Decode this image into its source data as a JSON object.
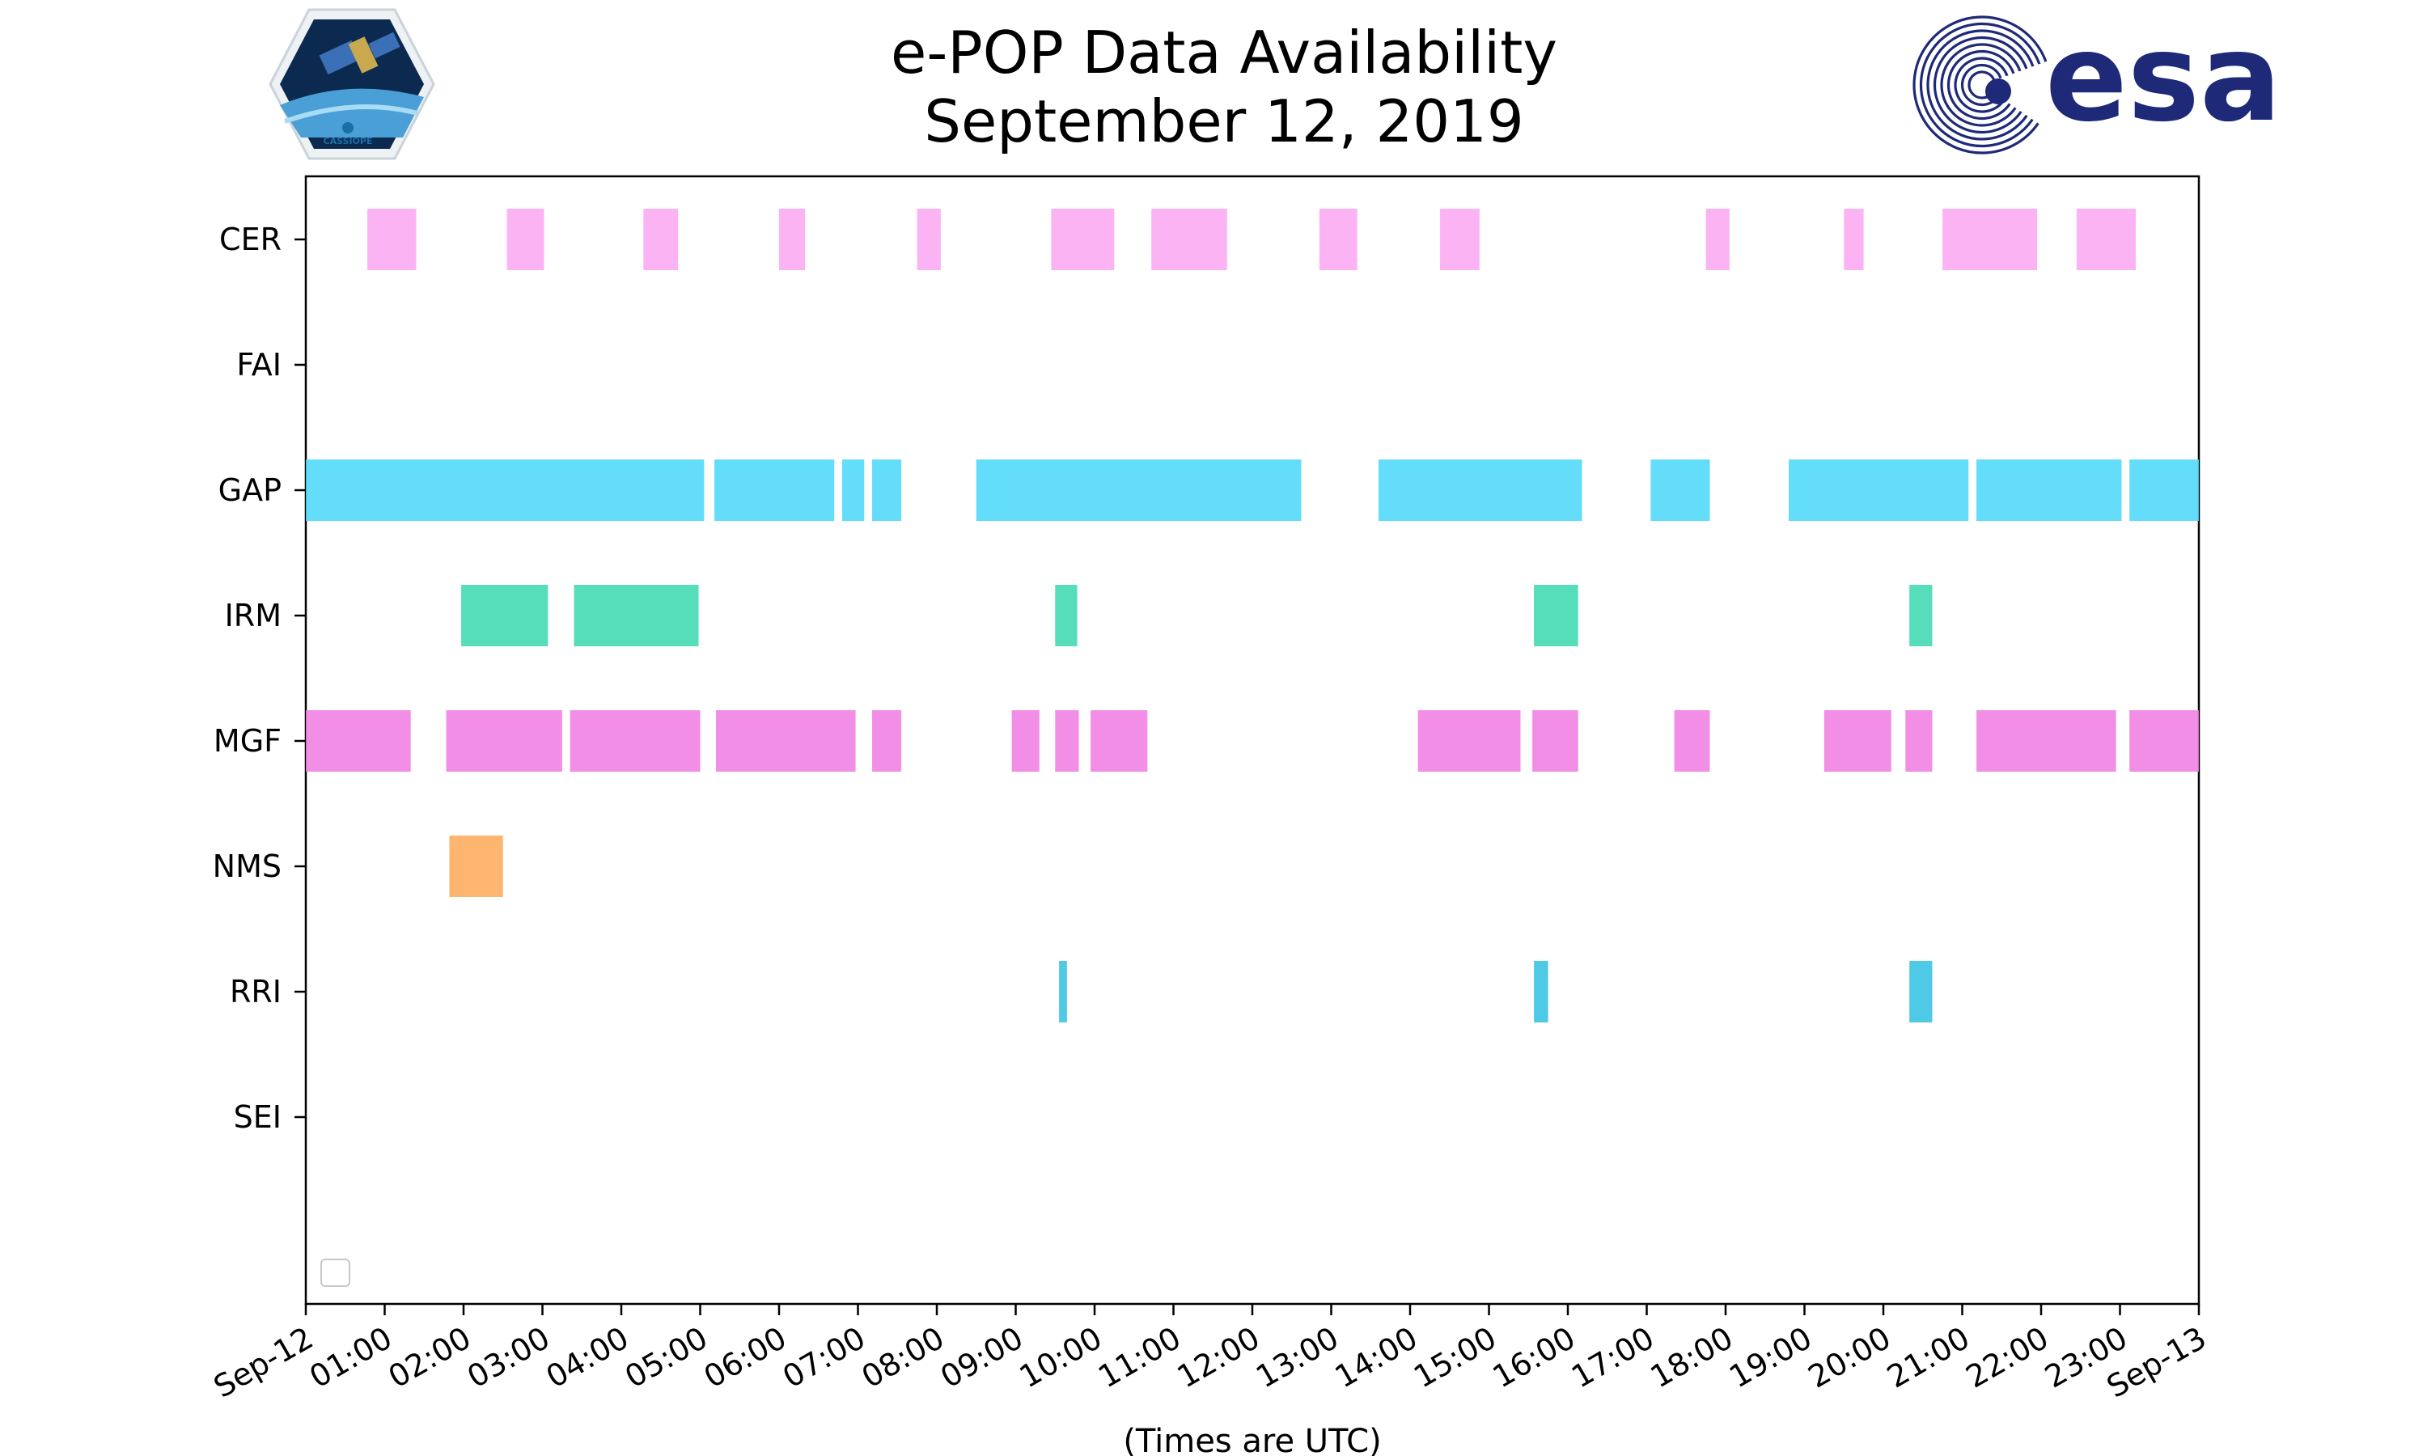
{
  "chart_data": {
    "type": "timeline",
    "title": "e-POP Data Availability",
    "subtitle": "September 12, 2019",
    "xlabel": "(Times are UTC)",
    "x_unit": "hours since Sep-12 00:00",
    "xlim": [
      0,
      24
    ],
    "x_ticks": [
      "Sep-12",
      "01:00",
      "02:00",
      "03:00",
      "04:00",
      "05:00",
      "06:00",
      "07:00",
      "08:00",
      "09:00",
      "10:00",
      "11:00",
      "12:00",
      "13:00",
      "14:00",
      "15:00",
      "16:00",
      "17:00",
      "18:00",
      "19:00",
      "20:00",
      "21:00",
      "22:00",
      "23:00",
      "Sep-13"
    ],
    "instruments": [
      {
        "name": "CER",
        "color": "#fca8f3",
        "segments": [
          [
            0.78,
            1.4
          ],
          [
            2.55,
            3.02
          ],
          [
            4.28,
            4.72
          ],
          [
            6.0,
            6.33
          ],
          [
            7.75,
            8.05
          ],
          [
            9.45,
            10.25
          ],
          [
            10.72,
            11.68
          ],
          [
            12.85,
            13.33
          ],
          [
            14.38,
            14.88
          ],
          [
            17.75,
            18.05
          ],
          [
            19.5,
            19.75
          ],
          [
            20.75,
            21.95
          ],
          [
            22.45,
            23.2
          ]
        ]
      },
      {
        "name": "FAI",
        "color": "#fca8f3",
        "segments": []
      },
      {
        "name": "GAP",
        "color": "#4dd8f8",
        "segments": [
          [
            0.0,
            5.05
          ],
          [
            5.18,
            6.7
          ],
          [
            6.8,
            7.08
          ],
          [
            7.18,
            7.55
          ],
          [
            8.5,
            12.62
          ],
          [
            13.6,
            16.18
          ],
          [
            17.05,
            17.8
          ],
          [
            18.8,
            21.08
          ],
          [
            21.18,
            23.02
          ],
          [
            23.12,
            24.0
          ]
        ]
      },
      {
        "name": "IRM",
        "color": "#3fd8b0",
        "segments": [
          [
            1.97,
            3.07
          ],
          [
            3.4,
            4.98
          ],
          [
            9.5,
            9.78
          ],
          [
            15.57,
            16.13
          ],
          [
            20.33,
            20.62
          ]
        ]
      },
      {
        "name": "MGF",
        "color": "#f07ee3",
        "segments": [
          [
            0.0,
            1.33
          ],
          [
            1.78,
            3.25
          ],
          [
            3.35,
            5.0
          ],
          [
            5.2,
            6.97
          ],
          [
            7.18,
            7.55
          ],
          [
            8.95,
            9.3
          ],
          [
            9.5,
            9.8
          ],
          [
            9.95,
            10.67
          ],
          [
            14.1,
            15.4
          ],
          [
            15.55,
            16.13
          ],
          [
            17.35,
            17.8
          ],
          [
            19.25,
            20.1
          ],
          [
            20.28,
            20.62
          ],
          [
            21.18,
            22.95
          ],
          [
            23.12,
            24.0
          ]
        ]
      },
      {
        "name": "NMS",
        "color": "#fdab5c",
        "segments": [
          [
            1.82,
            2.5
          ]
        ]
      },
      {
        "name": "RRI",
        "color": "#35c3e3",
        "segments": [
          [
            9.55,
            9.65
          ],
          [
            15.57,
            15.75
          ],
          [
            20.33,
            20.62
          ]
        ]
      },
      {
        "name": "SEI",
        "color": "#35c3e3",
        "segments": []
      }
    ],
    "legend": "bottom-left (empty)",
    "grid": false
  },
  "logos": {
    "left_caption": "CASSIOPE",
    "right_text": "esa",
    "esa_color": "#1e2a78"
  }
}
